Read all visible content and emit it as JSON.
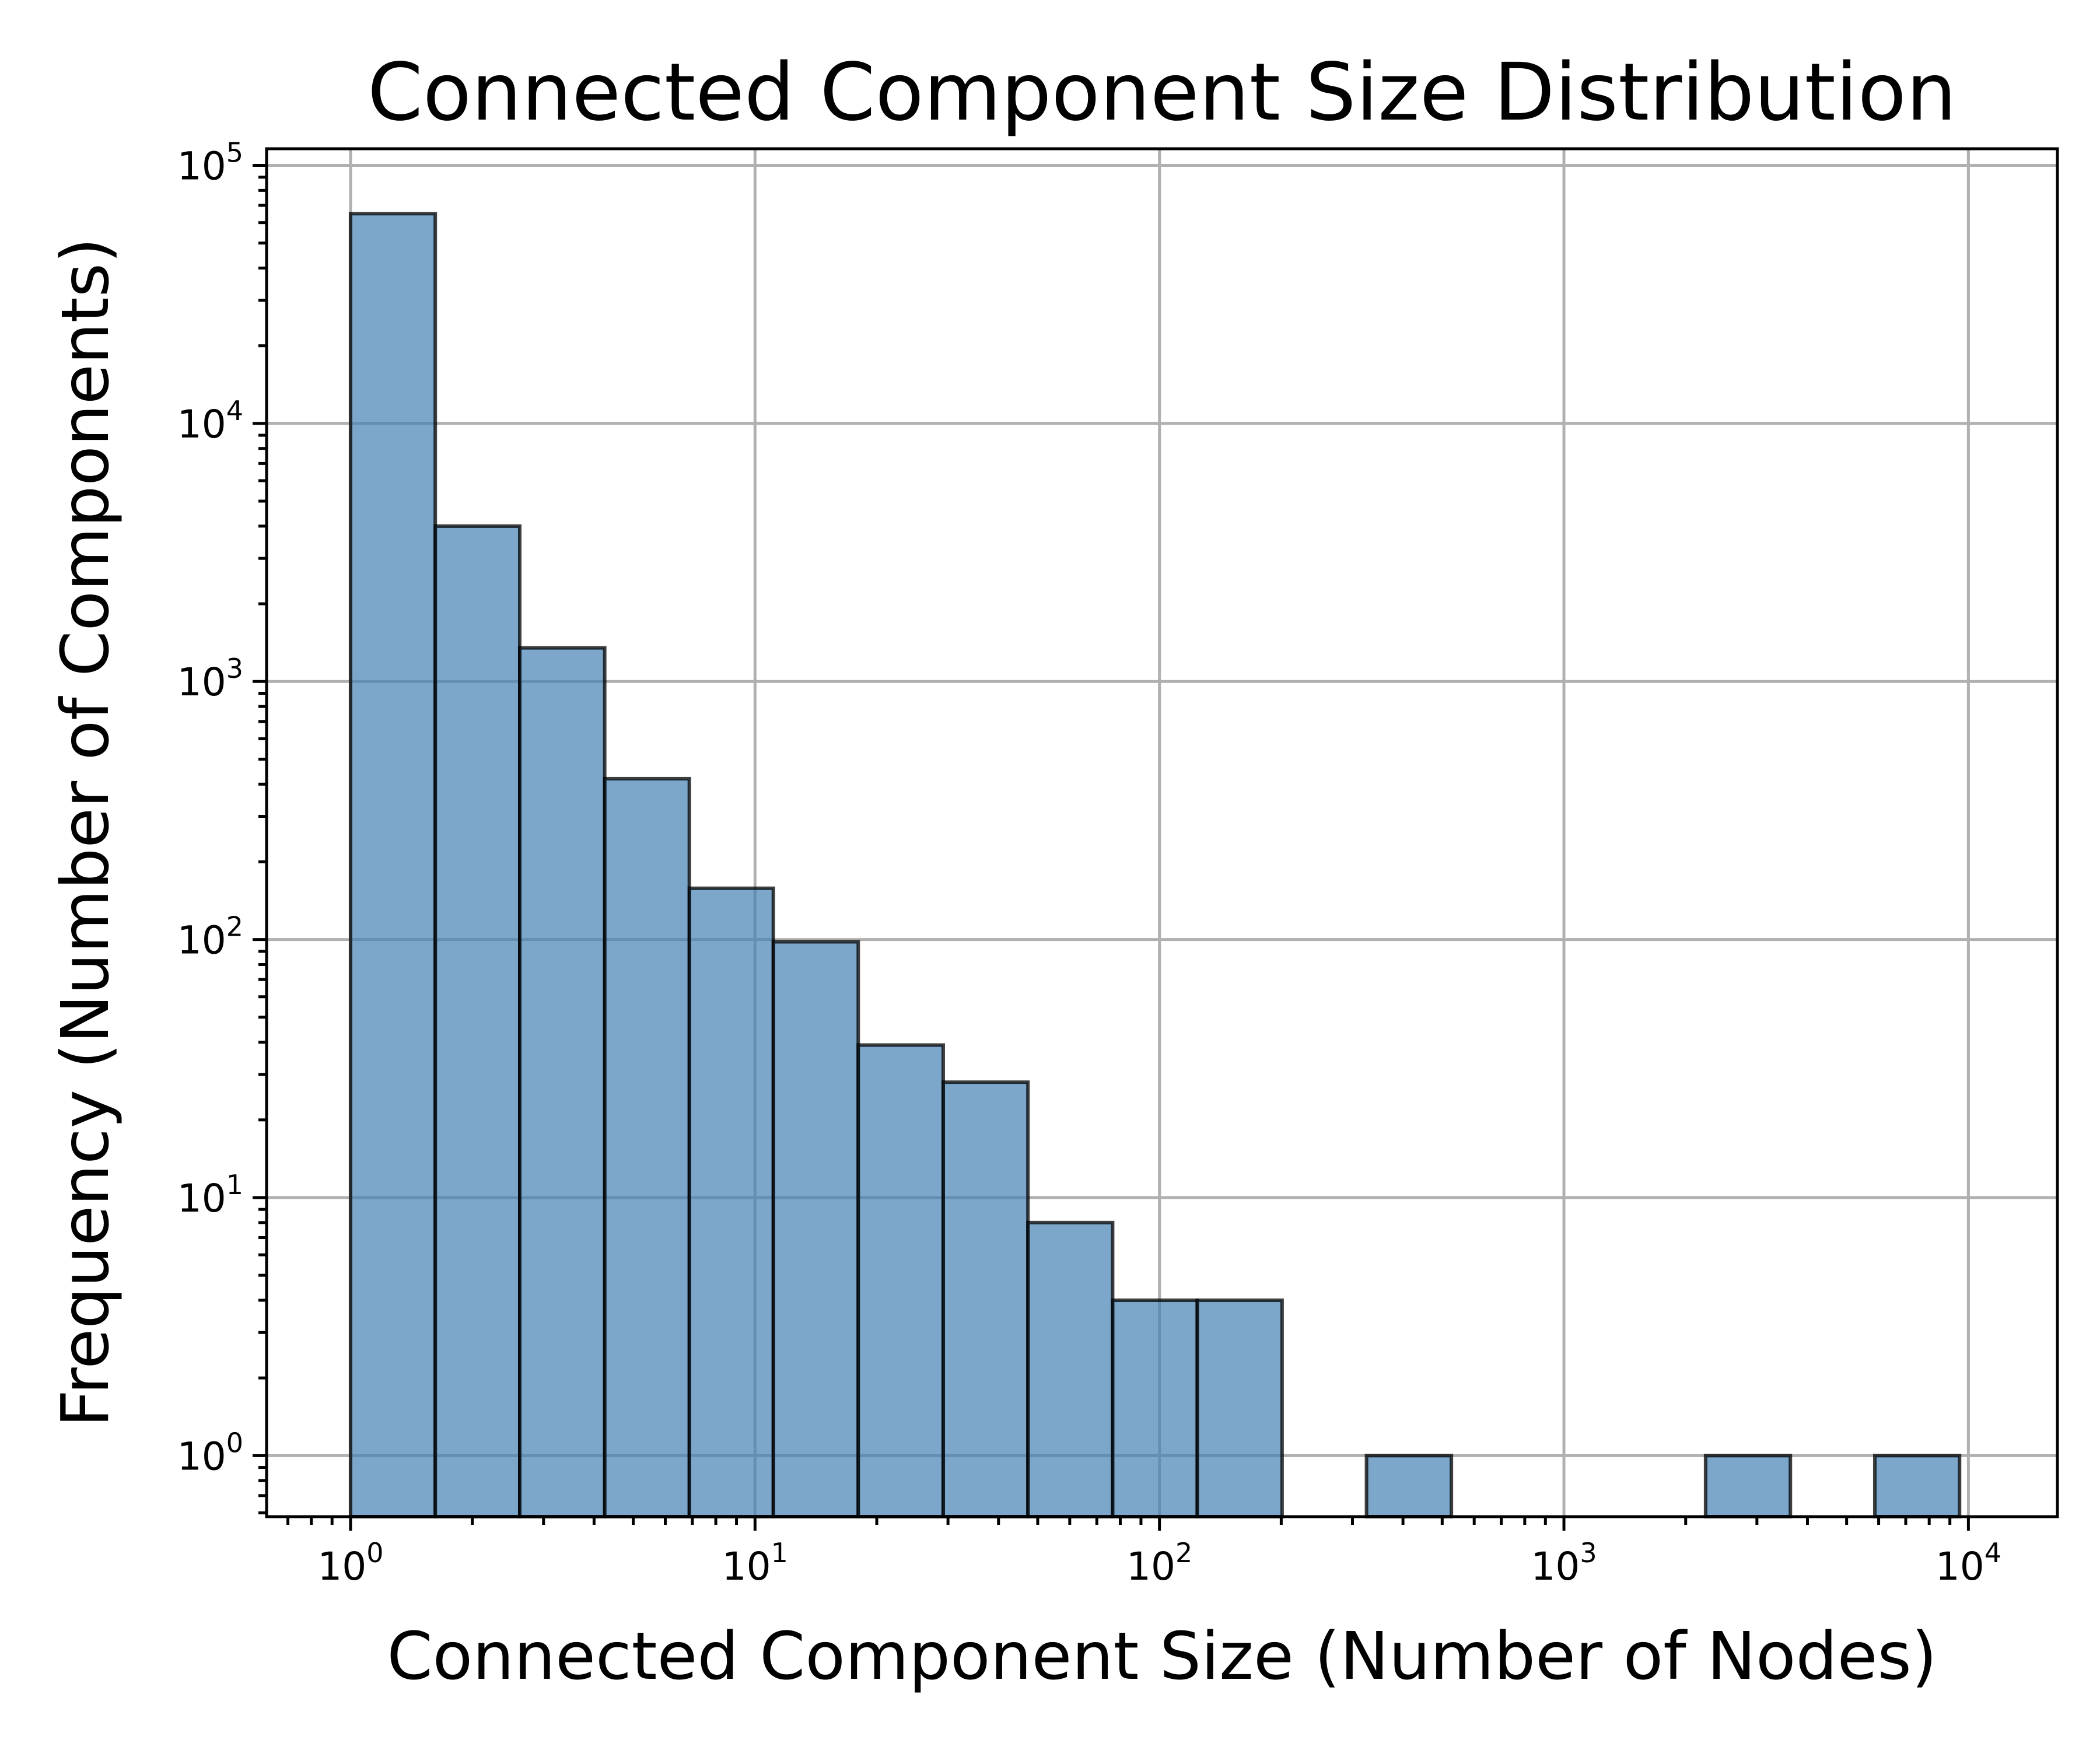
{
  "chart_data": {
    "type": "bar",
    "subtype": "histogram",
    "title": "Connected Component Size Distribution",
    "xlabel": "Connected Component Size (Number of Nodes)",
    "ylabel": "Frequency (Number of Components)",
    "xscale": "log",
    "yscale": "log",
    "xlim": [
      0.62,
      16600
    ],
    "ylim": [
      0.58,
      116000
    ],
    "grid": true,
    "bar_color": "#4682b4",
    "edge_color": "#000000",
    "x_ticks": [
      {
        "value": 1,
        "base": "10",
        "exp": "0"
      },
      {
        "value": 10,
        "base": "10",
        "exp": "1"
      },
      {
        "value": 100,
        "base": "10",
        "exp": "2"
      },
      {
        "value": 1000,
        "base": "10",
        "exp": "3"
      },
      {
        "value": 10000,
        "base": "10",
        "exp": "4"
      }
    ],
    "y_ticks": [
      {
        "value": 1,
        "base": "10",
        "exp": "0"
      },
      {
        "value": 10,
        "base": "10",
        "exp": "1"
      },
      {
        "value": 100,
        "base": "10",
        "exp": "2"
      },
      {
        "value": 1000,
        "base": "10",
        "exp": "3"
      },
      {
        "value": 10000,
        "base": "10",
        "exp": "4"
      },
      {
        "value": 100000,
        "base": "10",
        "exp": "5"
      }
    ],
    "bins": [
      {
        "x0": 1.0,
        "x1": 1.62,
        "count": 65000
      },
      {
        "x0": 1.62,
        "x1": 2.62,
        "count": 4000
      },
      {
        "x0": 2.62,
        "x1": 4.25,
        "count": 1350
      },
      {
        "x0": 4.25,
        "x1": 6.88,
        "count": 420
      },
      {
        "x0": 6.88,
        "x1": 11.1,
        "count": 158
      },
      {
        "x0": 11.1,
        "x1": 18.0,
        "count": 98
      },
      {
        "x0": 18.0,
        "x1": 29.2,
        "count": 39
      },
      {
        "x0": 29.2,
        "x1": 47.3,
        "count": 28
      },
      {
        "x0": 47.3,
        "x1": 76.6,
        "count": 8
      },
      {
        "x0": 76.6,
        "x1": 124,
        "count": 4
      },
      {
        "x0": 124,
        "x1": 201,
        "count": 4
      },
      {
        "x0": 201,
        "x1": 325,
        "count": 0
      },
      {
        "x0": 325,
        "x1": 527,
        "count": 1
      },
      {
        "x0": 527,
        "x1": 853,
        "count": 0
      },
      {
        "x0": 853,
        "x1": 1380,
        "count": 0
      },
      {
        "x0": 1380,
        "x1": 2240,
        "count": 0
      },
      {
        "x0": 2240,
        "x1": 3630,
        "count": 1
      },
      {
        "x0": 3630,
        "x1": 5870,
        "count": 0
      },
      {
        "x0": 5870,
        "x1": 9510,
        "count": 1
      }
    ]
  }
}
